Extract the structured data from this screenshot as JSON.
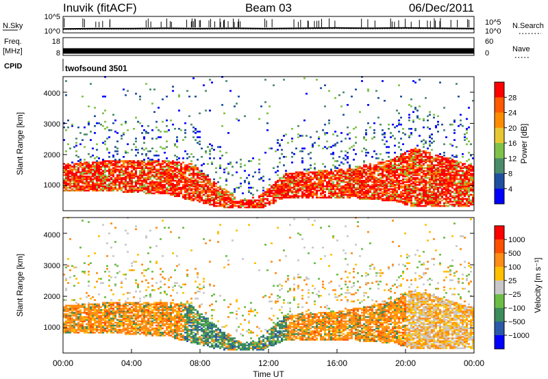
{
  "header": {
    "station": "Inuvik (fitACF)",
    "beam": "Beam 03",
    "date": "06/Dec/2011"
  },
  "colors": {
    "power": [
      "#0000ff",
      "#1e50a0",
      "#4a8c6a",
      "#7fc24a",
      "#e8c832",
      "#ff8c00",
      "#ff5a00",
      "#ff0000"
    ],
    "velocity": [
      "#0000ff",
      "#2b5aa8",
      "#3c8c5c",
      "#6cbd45",
      "#c8c8c8",
      "#ffc000",
      "#ff8c14",
      "#ff5000",
      "#ff0000"
    ],
    "ground": "#bebebe"
  },
  "chart_data": [
    {
      "type": "line",
      "id": "noise",
      "left_label": "N.Sky",
      "right_label": "N.Search",
      "left_ticks": [
        "10^5",
        "10^0"
      ],
      "right_ticks": [
        "10^5",
        "10^0"
      ],
      "ylim": [
        0,
        5
      ],
      "yscale": "log",
      "series": [
        {
          "name": "N.Sky",
          "style": "solid",
          "x": [
            0,
            2,
            4,
            6,
            8,
            10,
            12,
            14,
            16,
            18,
            20,
            22,
            24
          ],
          "values": [
            1.2,
            1.3,
            1.3,
            1.4,
            1.3,
            1.4,
            1.3,
            1.4,
            1.5,
            1.4,
            1.5,
            1.4,
            1.3
          ]
        },
        {
          "name": "N.Search",
          "style": "dotted",
          "x": [
            0,
            2,
            4,
            6,
            8,
            10,
            12,
            14,
            16,
            18,
            20,
            22,
            24
          ],
          "values": [
            1.0,
            1.1,
            1.1,
            1.2,
            1.1,
            1.2,
            1.1,
            1.2,
            1.3,
            1.2,
            1.3,
            1.2,
            1.1
          ]
        }
      ]
    },
    {
      "type": "line",
      "id": "freq",
      "left_label_top": "Freq.",
      "left_label_bottom": "[MHz]",
      "right_label": "Nave",
      "left_ticks": [
        "18",
        "8"
      ],
      "right_ticks": [
        "60",
        "0"
      ],
      "ylim": [
        8,
        18
      ],
      "series": [
        {
          "name": "Freq.",
          "style": "solid",
          "x": [
            0,
            24
          ],
          "values": [
            10.5,
            10.5
          ]
        },
        {
          "name": "Nave",
          "style": "dotted",
          "x": [
            0,
            24
          ],
          "values": [
            11,
            11
          ]
        }
      ]
    },
    {
      "type": "text",
      "id": "cpid",
      "label": "CPID",
      "value": "twofsound 3501"
    },
    {
      "type": "heatmap",
      "id": "power",
      "ylabel": "Slant Range [km]",
      "yticks": [
        "1000",
        "2000",
        "3000",
        "4000"
      ],
      "ylim": [
        200,
        4500
      ],
      "xlim": [
        0,
        24
      ],
      "colorbar_label": "Power [dB]",
      "colorbar_ticks": [
        "4",
        "8",
        "12",
        "16",
        "20",
        "24",
        "28"
      ],
      "clim": [
        0,
        32
      ]
    },
    {
      "type": "heatmap",
      "id": "velocity",
      "ylabel": "Slant Range [km]",
      "yticks": [
        "1000",
        "2000",
        "3000",
        "4000"
      ],
      "ylim": [
        200,
        4500
      ],
      "xlim": [
        0,
        24
      ],
      "colorbar_label": "Velocity [m s⁻¹]",
      "colorbar_ticks": [
        "1000",
        "500",
        "100",
        "25",
        "−25",
        "−100",
        "−500",
        "−1000"
      ],
      "xticks": [
        "00:00",
        "04:00",
        "08:00",
        "12:00",
        "16:00",
        "20:00",
        "00:00"
      ],
      "xlabel": "Time UT"
    }
  ]
}
